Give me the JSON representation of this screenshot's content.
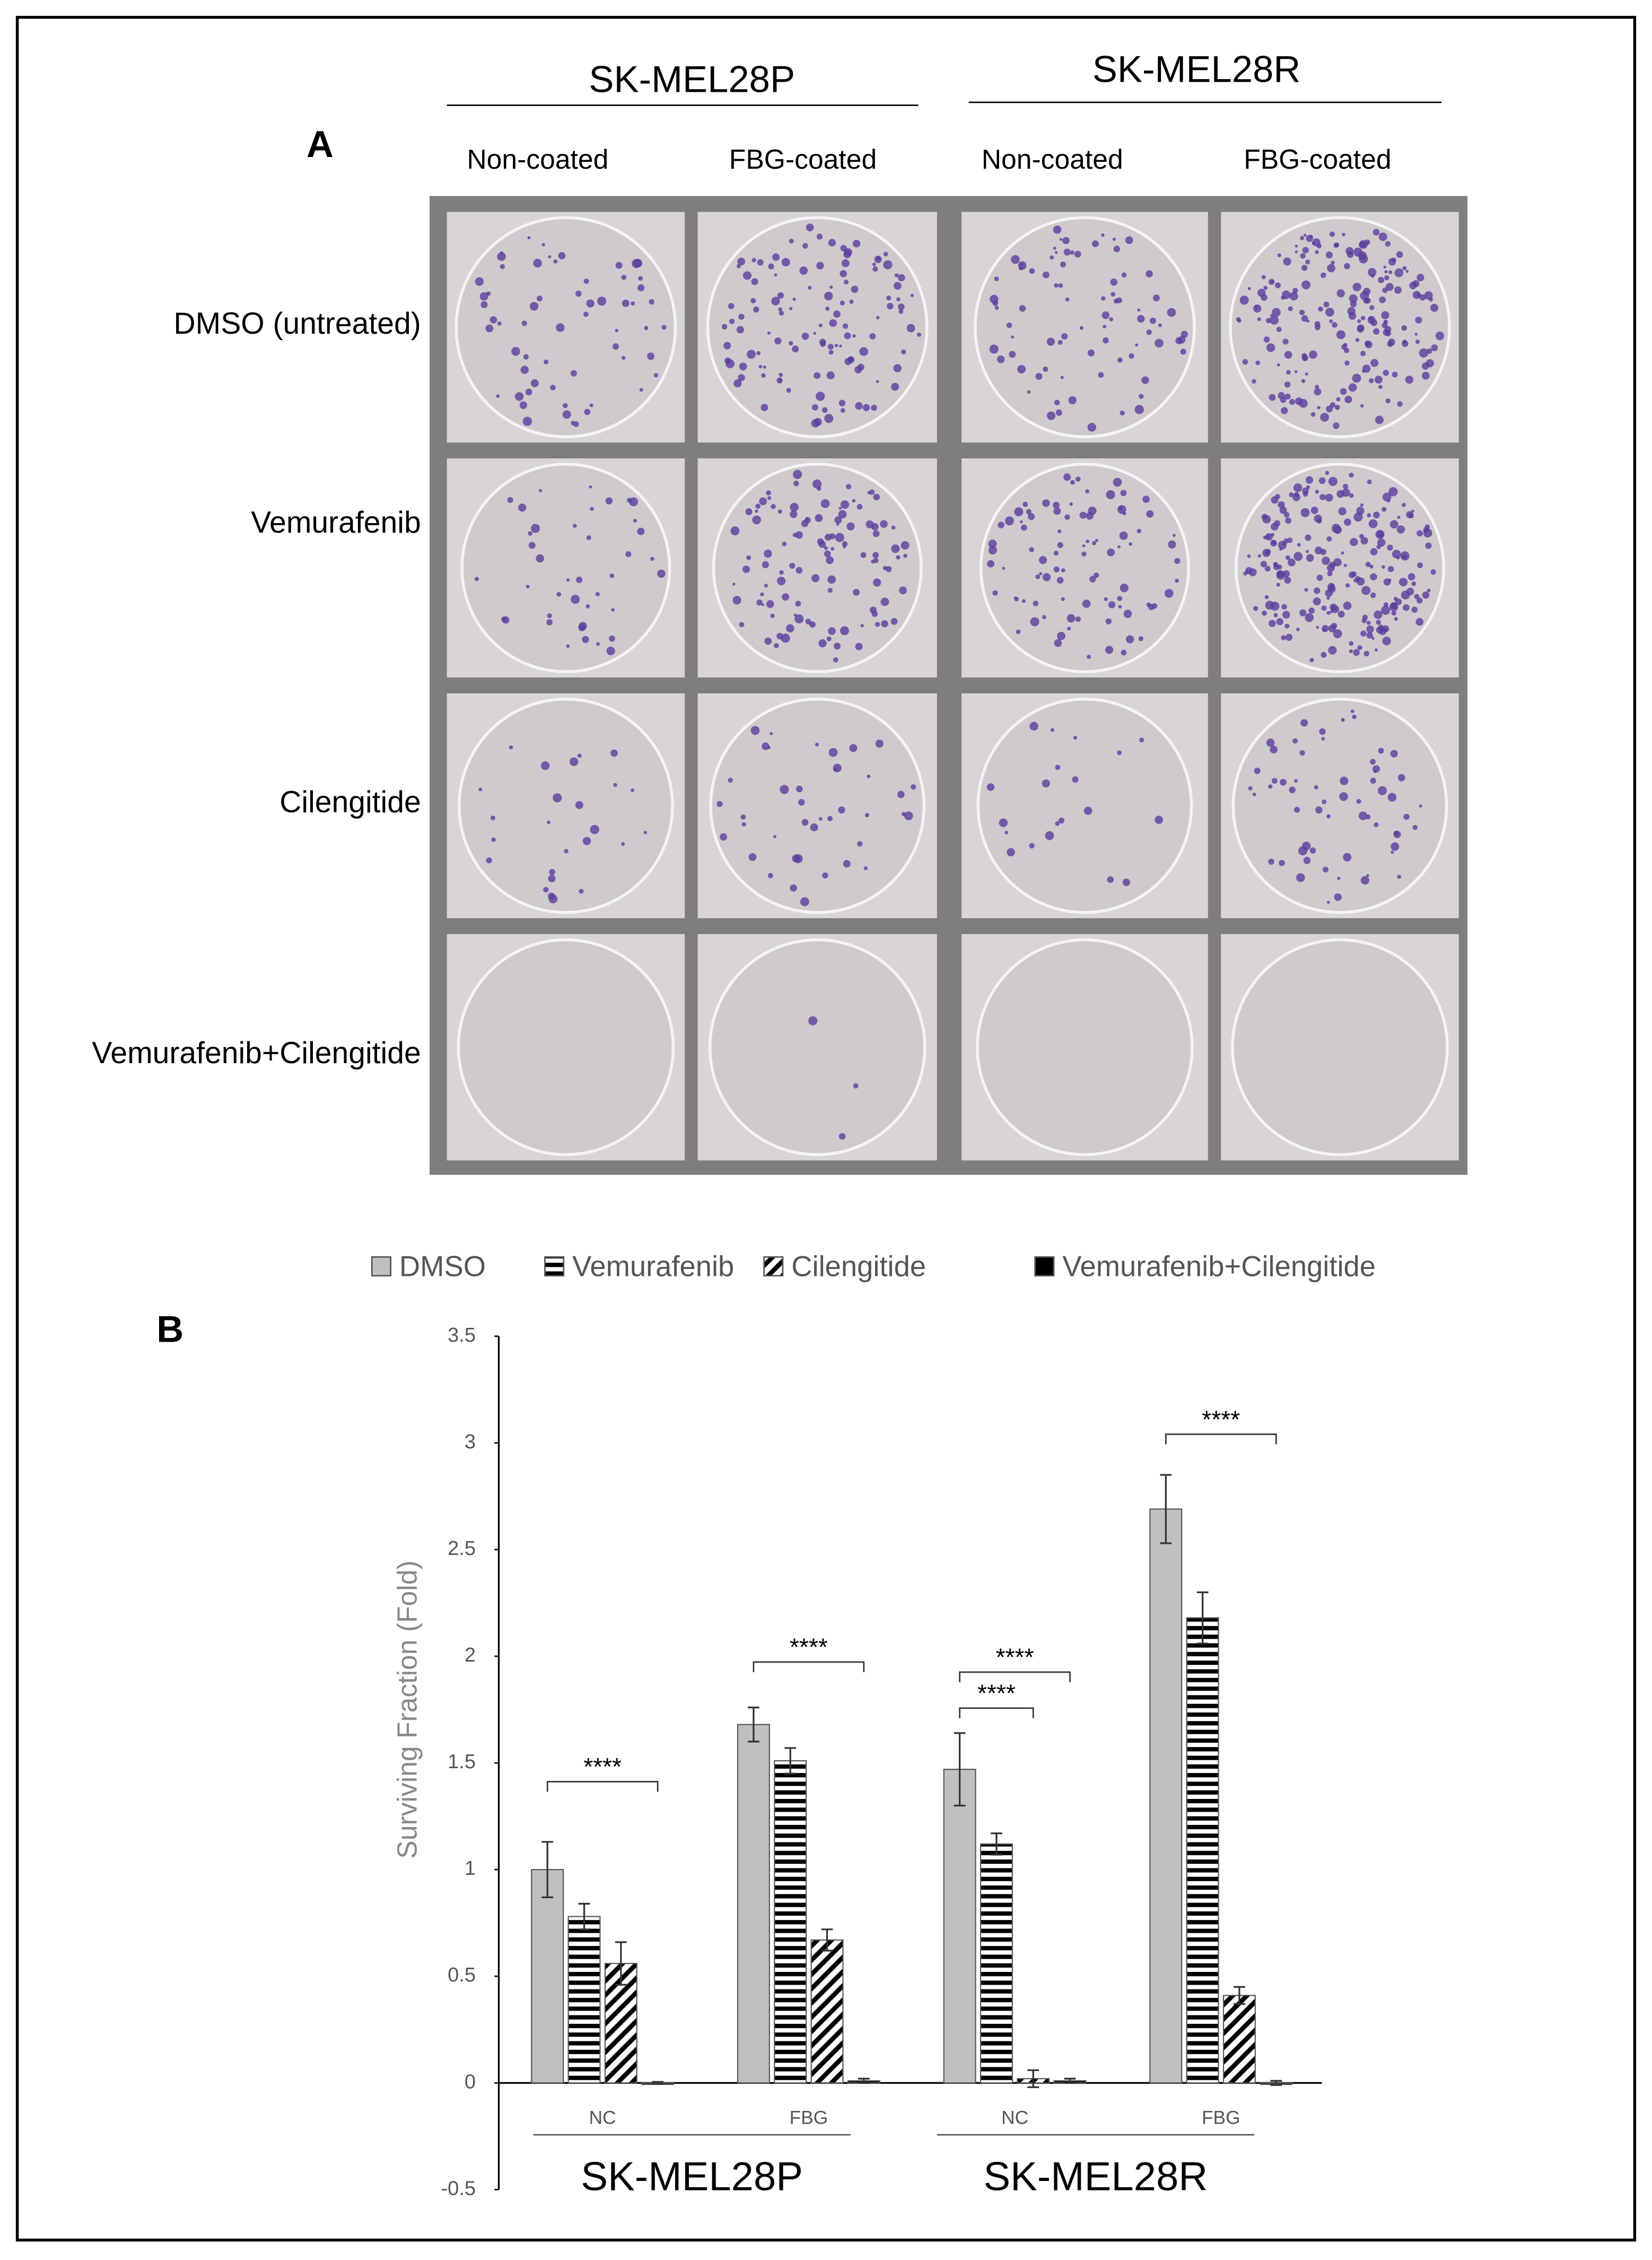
{
  "panel_a": {
    "label": "A",
    "groups": [
      "SK-MEL28P",
      "SK-MEL28R"
    ],
    "columns": [
      "Non-coated",
      "FBG-coated",
      "Non-coated",
      "FBG-coated"
    ],
    "rows": [
      "DMSO (untreated)",
      "Vemurafenib",
      "Cilengitide",
      "Vemurafenib+Cilengitide"
    ]
  },
  "chart_data": {
    "type": "bar",
    "panel_label": "B",
    "ylabel": "Surviving Fraction (Fold)",
    "categories": [
      "NC",
      "FBG",
      "NC",
      "FBG"
    ],
    "groups": [
      "SK-MEL28P",
      "SK-MEL28R"
    ],
    "series": [
      {
        "name": "DMSO",
        "color": "#c0c0c0",
        "pattern": "solid",
        "values": [
          1.0,
          1.68,
          1.47,
          2.69
        ],
        "errors": [
          0.13,
          0.08,
          0.17,
          0.16
        ]
      },
      {
        "name": "Vemurafenib",
        "color": "#000000",
        "pattern": "horizontal",
        "values": [
          0.78,
          1.51,
          1.12,
          2.18
        ],
        "errors": [
          0.06,
          0.06,
          0.05,
          0.12
        ]
      },
      {
        "name": "Cilengitide",
        "color": "#000000",
        "pattern": "diagonal",
        "values": [
          0.56,
          0.67,
          0.02,
          0.41
        ],
        "errors": [
          0.1,
          0.05,
          0.04,
          0.04
        ]
      },
      {
        "name": "Vemurafenib+Cilengitide",
        "color": "#000000",
        "pattern": "solid",
        "values": [
          0.0,
          0.01,
          0.01,
          0.0
        ],
        "errors": [
          0.005,
          0.01,
          0.01,
          0.01
        ]
      }
    ],
    "annotations": [
      "****",
      "****",
      "****",
      "****",
      "****"
    ],
    "ylim": [
      -0.5,
      3.5
    ],
    "yticks": [
      -0.5,
      0,
      0.5,
      1,
      1.5,
      2,
      2.5,
      3,
      3.5
    ]
  }
}
